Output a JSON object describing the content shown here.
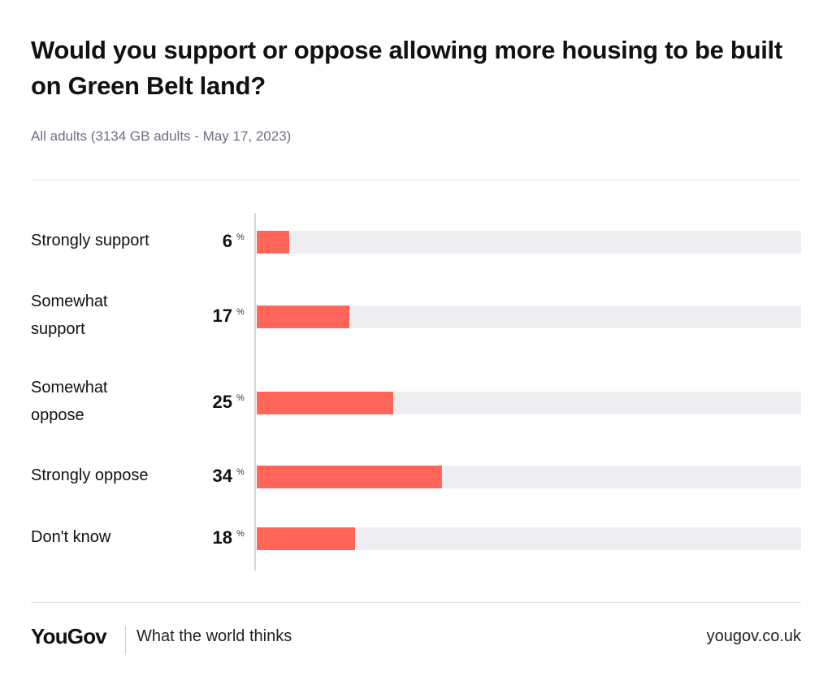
{
  "chart_data": {
    "type": "bar",
    "orientation": "horizontal",
    "title": "Would you support or oppose allowing more housing to be built on Green Belt land?",
    "subtitle": "All adults (3134 GB adults - May 17, 2023)",
    "unit": "%",
    "categories": [
      "Strongly support",
      "Somewhat support",
      "Somewhat oppose",
      "Strongly oppose",
      "Don't know"
    ],
    "category_lines": [
      [
        "Strongly support"
      ],
      [
        "Somewhat",
        "support"
      ],
      [
        "Somewhat",
        "oppose"
      ],
      [
        "Strongly oppose"
      ],
      [
        "Don't know"
      ]
    ],
    "values": [
      6,
      17,
      25,
      34,
      18
    ],
    "xlim": [
      0,
      100
    ],
    "grid": false,
    "legend": "none"
  },
  "colors": {
    "bar": "#ff6659",
    "track": "#eeeef2",
    "subtitle": "#6b6f85"
  },
  "footer": {
    "brand": "YouGov",
    "tagline": "What the world thinks",
    "url": "yougov.co.uk"
  }
}
